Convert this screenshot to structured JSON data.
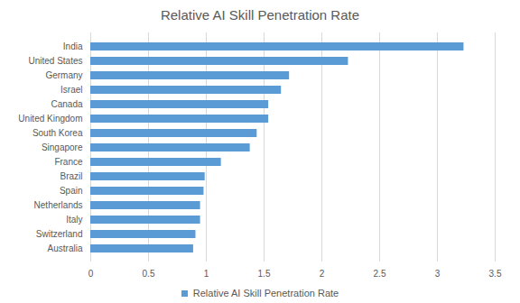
{
  "chart_data": {
    "type": "bar",
    "orientation": "horizontal",
    "title": "Relative AI Skill Penetration Rate",
    "categories": [
      "India",
      "United States",
      "Germany",
      "Israel",
      "Canada",
      "United Kingdom",
      "South Korea",
      "Singapore",
      "France",
      "Brazil",
      "Spain",
      "Netherlands",
      "Italy",
      "Switzerland",
      "Australia"
    ],
    "series": [
      {
        "name": "Relative AI Skill Penetration Rate",
        "color": "#5b9bd5",
        "values": [
          3.23,
          2.23,
          1.72,
          1.65,
          1.54,
          1.54,
          1.44,
          1.38,
          1.13,
          0.99,
          0.98,
          0.95,
          0.95,
          0.91,
          0.89
        ]
      }
    ],
    "xlim": [
      0,
      3.5
    ],
    "xticks": [
      0,
      0.5,
      1,
      1.5,
      2,
      2.5,
      3,
      3.5
    ],
    "grid": true,
    "legend": "bottom"
  }
}
